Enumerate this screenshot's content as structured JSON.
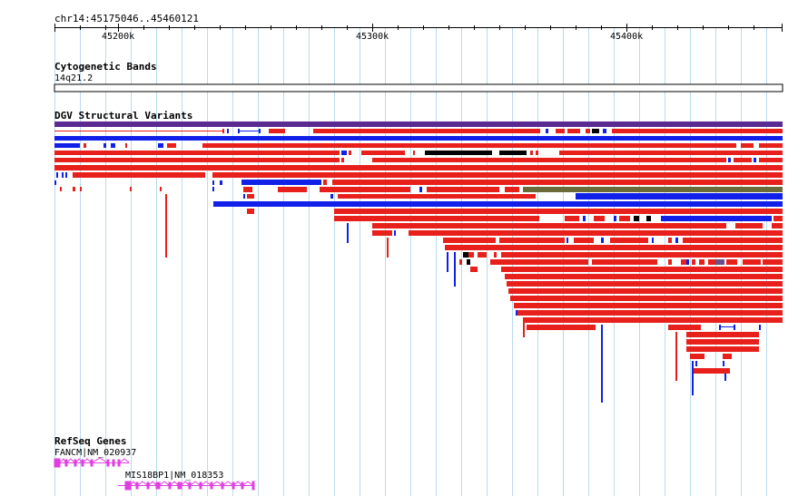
{
  "location": "chr14:45175046..45460121",
  "ruler": {
    "ticks": [
      "45200k",
      "45300k",
      "45400k"
    ]
  },
  "tracks": {
    "cytobands": {
      "title": "Cytogenetic Bands",
      "band": "14q21.2"
    },
    "dgv": {
      "title": "DGV Structural Variants"
    },
    "refseq": {
      "title": "RefSeq Genes",
      "genes": [
        {
          "name": "FANCM|NM_020937"
        },
        {
          "name": "MIS18BP1|NM_018353"
        }
      ]
    }
  },
  "colors": {
    "loss": "#e8201c",
    "gain": "#1020e8",
    "gainloss": "#6b4c8c",
    "inversion": "#000000",
    "complex": "#6b6b3a",
    "gene": "#e040e0",
    "grid": "#b6dcec"
  }
}
